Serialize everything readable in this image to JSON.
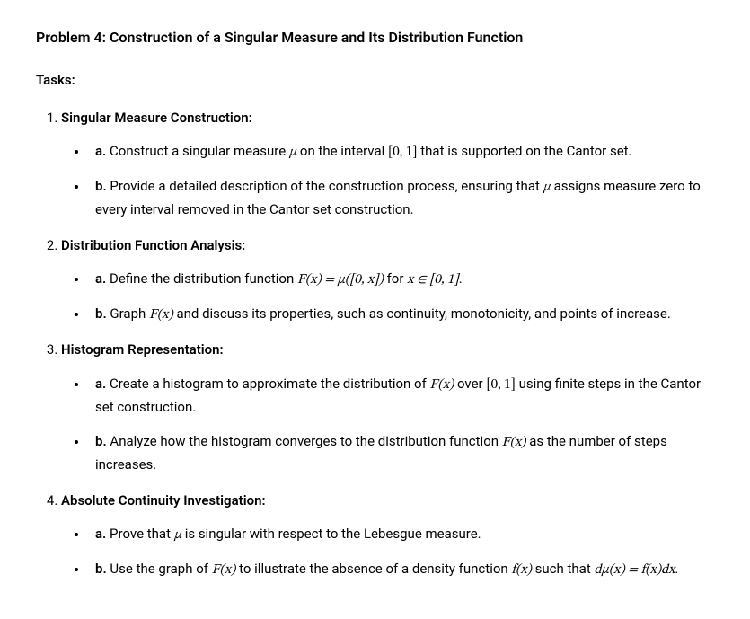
{
  "title": "Problem 4: Construction of a Singular Measure and Its Distribution Function",
  "tasks_label": "Tasks:",
  "sections": [
    {
      "heading": "Singular Measure Construction:",
      "items": [
        {
          "label": "a.",
          "text_pre": " Construct a singular measure ",
          "math1": "μ",
          "text_mid1": " on the interval ",
          "math2": "[0, 1]",
          "text_post": " that is supported on the Cantor set."
        },
        {
          "label": "b.",
          "text_pre": " Provide a detailed description of the construction process, ensuring that ",
          "math1": "μ",
          "text_post": " assigns measure zero to every interval removed in the Cantor set construction."
        }
      ]
    },
    {
      "heading": "Distribution Function Analysis:",
      "items": [
        {
          "label": "a.",
          "text_pre": " Define the distribution function ",
          "math1": "F(x) = μ([0, x])",
          "text_mid1": " for ",
          "math2": "x ∈ [0, 1]",
          "text_post": "."
        },
        {
          "label": "b.",
          "text_pre": " Graph ",
          "math1": "F(x)",
          "text_post": " and discuss its properties, such as continuity, monotonicity, and points of increase."
        }
      ]
    },
    {
      "heading": "Histogram Representation:",
      "items": [
        {
          "label": "a.",
          "text_pre": " Create a histogram to approximate the distribution of ",
          "math1": "F(x)",
          "text_mid1": " over ",
          "math2": "[0, 1]",
          "text_post": " using finite steps in the Cantor set construction."
        },
        {
          "label": "b.",
          "text_pre": " Analyze how the histogram converges to the distribution function ",
          "math1": "F(x)",
          "text_post": " as the number of steps increases."
        }
      ]
    },
    {
      "heading": "Absolute Continuity Investigation:",
      "items": [
        {
          "label": "a.",
          "text_pre": " Prove that ",
          "math1": "μ",
          "text_post": " is singular with respect to the Lebesgue measure."
        },
        {
          "label": "b.",
          "text_pre": " Use the graph of ",
          "math1": "F(x)",
          "text_mid1": " to illustrate the absence of a density function ",
          "math2": "f(x)",
          "text_mid2": " such that ",
          "math3": "dμ(x) = f(x)dx",
          "text_post": "."
        }
      ]
    }
  ]
}
